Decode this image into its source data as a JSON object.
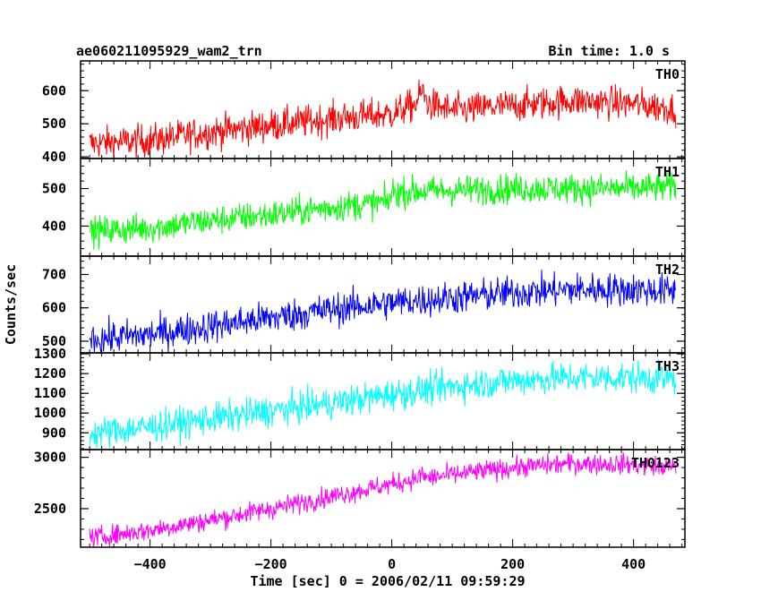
{
  "chart_data": {
    "type": "line",
    "title": "ae060211095929_wam2_trn",
    "subtitle": "Bin time: 1.0 s",
    "xlabel": "Time [sec] 0 = 2006/02/11 09:59:29",
    "ylabel": "Counts/sec",
    "xlim": [
      -515,
      485
    ],
    "x_ticks": [
      "−400",
      "−200",
      "0",
      "200",
      "400"
    ],
    "x_tick_values": [
      -400,
      -200,
      0,
      200,
      400
    ],
    "grid": false,
    "panels": [
      {
        "name": "TH0",
        "color": "#ff0000",
        "ylim": [
          395,
          690
        ],
        "y_ticks": [
          "400",
          "500",
          "600"
        ],
        "y_tick_values": [
          400,
          500,
          600
        ],
        "trend": [
          [
            -500,
            440
          ],
          [
            -400,
            450
          ],
          [
            -300,
            475
          ],
          [
            -200,
            495
          ],
          [
            -100,
            515
          ],
          [
            0,
            530
          ],
          [
            40,
            560
          ],
          [
            50,
            600
          ],
          [
            60,
            560
          ],
          [
            100,
            540
          ],
          [
            200,
            555
          ],
          [
            300,
            570
          ],
          [
            400,
            560
          ],
          [
            470,
            545
          ]
        ],
        "noise": 25
      },
      {
        "name": "TH1",
        "color": "#00ff00",
        "ylim": [
          320,
          580
        ],
        "y_ticks": [
          "400",
          "500"
        ],
        "y_tick_values": [
          400,
          500
        ],
        "trend": [
          [
            -500,
            385
          ],
          [
            -400,
            395
          ],
          [
            -300,
            415
          ],
          [
            -200,
            430
          ],
          [
            -100,
            450
          ],
          [
            -5,
            465
          ],
          [
            0,
            490
          ],
          [
            100,
            495
          ],
          [
            200,
            500
          ],
          [
            300,
            500
          ],
          [
            400,
            500
          ],
          [
            470,
            505
          ]
        ],
        "noise": 20
      },
      {
        "name": "TH2",
        "color": "#0000ff",
        "ylim": [
          465,
          755
        ],
        "y_ticks": [
          "500",
          "600",
          "700"
        ],
        "y_tick_values": [
          500,
          600,
          700
        ],
        "trend": [
          [
            -500,
            505
          ],
          [
            -400,
            520
          ],
          [
            -300,
            545
          ],
          [
            -200,
            570
          ],
          [
            -100,
            595
          ],
          [
            0,
            615
          ],
          [
            100,
            630
          ],
          [
            200,
            645
          ],
          [
            300,
            655
          ],
          [
            400,
            655
          ],
          [
            470,
            650
          ]
        ],
        "noise": 25
      },
      {
        "name": "TH3",
        "color": "#00ffff",
        "ylim": [
          815,
          1305
        ],
        "y_ticks": [
          "900",
          "1000",
          "1100",
          "1200",
          "1300"
        ],
        "y_tick_values": [
          900,
          1000,
          1100,
          1200,
          1300
        ],
        "trend": [
          [
            -500,
            895
          ],
          [
            -400,
            930
          ],
          [
            -300,
            970
          ],
          [
            -200,
            1010
          ],
          [
            -100,
            1050
          ],
          [
            0,
            1095
          ],
          [
            100,
            1135
          ],
          [
            200,
            1165
          ],
          [
            300,
            1180
          ],
          [
            400,
            1180
          ],
          [
            470,
            1175
          ]
        ],
        "noise": 40
      },
      {
        "name": "TH0123",
        "color": "#ff00ff",
        "ylim": [
          2125,
          3075
        ],
        "y_ticks": [
          "2500",
          "3000"
        ],
        "y_tick_values": [
          2500,
          3000
        ],
        "trend": [
          [
            -500,
            2215
          ],
          [
            -400,
            2290
          ],
          [
            -300,
            2390
          ],
          [
            -200,
            2500
          ],
          [
            -100,
            2620
          ],
          [
            0,
            2740
          ],
          [
            40,
            2790
          ],
          [
            50,
            2830
          ],
          [
            60,
            2800
          ],
          [
            100,
            2830
          ],
          [
            200,
            2900
          ],
          [
            300,
            2940
          ],
          [
            400,
            2930
          ],
          [
            470,
            2900
          ]
        ],
        "noise": 50
      }
    ]
  }
}
